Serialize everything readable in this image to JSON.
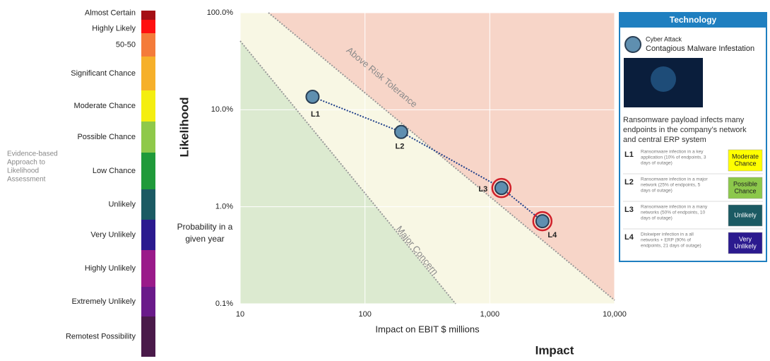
{
  "likelihood_scale": {
    "note": [
      "Evidence-based",
      "Approach to",
      "Likelihood",
      "Assessment"
    ],
    "levels": [
      {
        "label": "Almost Certain",
        "color": "#a50f15"
      },
      {
        "label": "Highly Likely",
        "color": "#ff1010"
      },
      {
        "label": "50-50",
        "color": "#f47b3a"
      },
      {
        "label": "Significant Chance",
        "color": "#f6b02a"
      },
      {
        "label": "Moderate Chance",
        "color": "#f4ee10"
      },
      {
        "label": "Possible Chance",
        "color": "#8fc94a"
      },
      {
        "label": "Low Chance",
        "color": "#1f9a3a"
      },
      {
        "label": "Unlikely",
        "color": "#1b5a63"
      },
      {
        "label": "Very Unlikely",
        "color": "#2b1a8f"
      },
      {
        "label": "Highly Unlikely",
        "color": "#9a1a8a"
      },
      {
        "label": "Extremely Unlikely",
        "color": "#6a1a8a"
      },
      {
        "label": "Remotest Possibility",
        "color": "#4a1a4a"
      }
    ]
  },
  "chart_data": {
    "type": "line",
    "y_label": "Likelihood",
    "y_sublabel": [
      "Probability in a",
      "given year"
    ],
    "x_label": "Impact on EBIT $ millions",
    "x_title": "Impact",
    "annotations": [
      "Above Risk Tolerance",
      "Major Concern"
    ],
    "x": [
      38,
      195,
      1240,
      2640
    ],
    "values": [
      13.6,
      5.9,
      1.56,
      0.71
    ],
    "point_labels": [
      "L1",
      "L2",
      "L3",
      "L4"
    ],
    "color": "#1f3f8a",
    "marker_color": "#5f8fb0",
    "outline_colors": [
      "#2a3f55",
      "#2a3f55",
      "#d0202a",
      "#d0202a"
    ],
    "xscale": "log",
    "yscale": "log",
    "grid": true,
    "xlim": [
      10,
      10000
    ],
    "xticks": [
      10,
      100,
      {
        "value": 1000,
        "label": "1,000"
      },
      {
        "value": 10000,
        "label": "10,000"
      }
    ],
    "ylim": [
      0.1,
      100
    ],
    "yticks": [
      {
        "value": 0.1,
        "label": "0.1%"
      },
      {
        "value": 1,
        "label": "1.0%"
      },
      {
        "value": 10,
        "label": "10.0%"
      },
      {
        "value": 100,
        "label": "100.0%"
      }
    ]
  },
  "panel": {
    "header": "Technology",
    "category": "Cyber Attack",
    "title": "Contagious Malware Infestation",
    "description": [
      "Ransomware payload infects many",
      "endpoints in the company’s network",
      "and central ERP system"
    ],
    "rows": [
      {
        "level": "L1",
        "text": [
          "Ransomware infection in a key",
          "application (10% of endpoints, 3",
          "days of outage)"
        ],
        "badge": [
          "Moderate",
          "Chance"
        ],
        "badge_color": "#ffff00",
        "badge_text_color": "#222"
      },
      {
        "level": "L2",
        "text": [
          "Ransomware infection in a major",
          "network (25% of endpoints, 5",
          "days of outage)"
        ],
        "badge": [
          "Possible",
          "Chance"
        ],
        "badge_color": "#8cc84b",
        "badge_text_color": "#222"
      },
      {
        "level": "L3",
        "text": [
          "Ransomware infection in a many",
          "networks (50% of endpoints, 10",
          "days of outage)"
        ],
        "badge": [
          "Unlikely"
        ],
        "badge_color": "#1b5a63",
        "badge_text_color": "#fff"
      },
      {
        "level": "L4",
        "text": [
          "Diskwiper infection in a all",
          "networks + ERP  (90% of",
          "endpoints, 21 days of outage)"
        ],
        "badge": [
          "Very",
          "Unlikely"
        ],
        "badge_color": "#2b1a8f",
        "badge_text_color": "#fff"
      }
    ]
  }
}
